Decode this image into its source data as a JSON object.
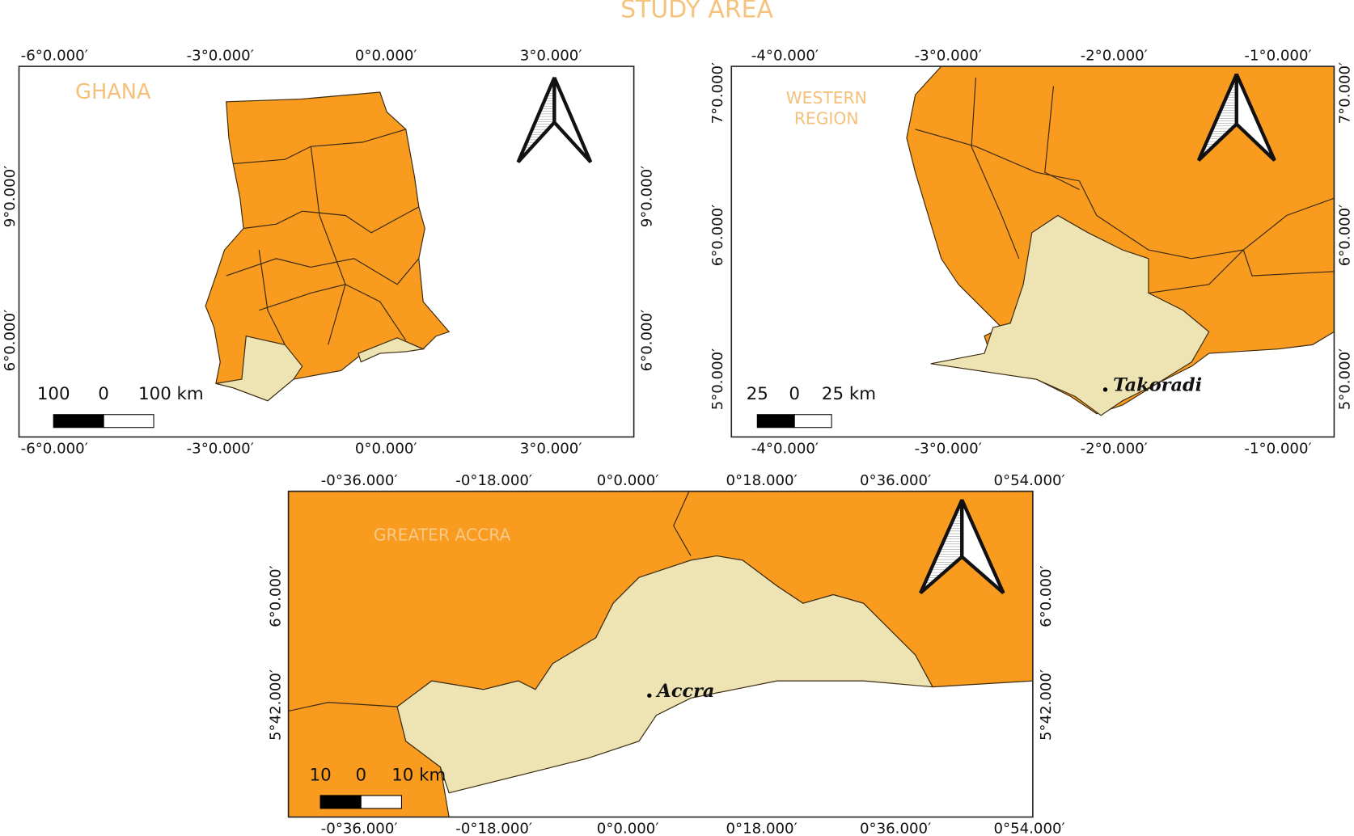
{
  "title": "STUDY AREA",
  "maps": [
    {
      "label": [
        "GHANA"
      ],
      "lon_ticks": [
        "-6°0.000′",
        "-3°0.000′",
        "0°0.000′",
        "3°0.000′"
      ],
      "lat_ticks": [
        "9°0.000′",
        "6°0.000′"
      ],
      "scale": [
        "100",
        "0",
        "100 km"
      ]
    },
    {
      "label": [
        "WESTERN",
        "REGION"
      ],
      "lon_ticks": [
        "-4°0.000′",
        "-3°0.000′",
        "-2°0.000′",
        "-1°0.000′"
      ],
      "lat_ticks": [
        "7°0.000′",
        "6°0.000′",
        "5°0.000′"
      ],
      "scale": [
        "25",
        "0",
        "25 km"
      ],
      "place": "Takoradi"
    },
    {
      "label": [
        "GREATER ACCRA"
      ],
      "lon_ticks": [
        "-0°36.000′",
        "-0°18.000′",
        "0°0.000′",
        "0°18.000′",
        "0°36.000′",
        "0°54.000′"
      ],
      "lat_ticks": [
        "6°0.000′",
        "5°42.000′"
      ],
      "scale": [
        "10",
        "0",
        "10 km"
      ],
      "place": "Accra"
    }
  ]
}
